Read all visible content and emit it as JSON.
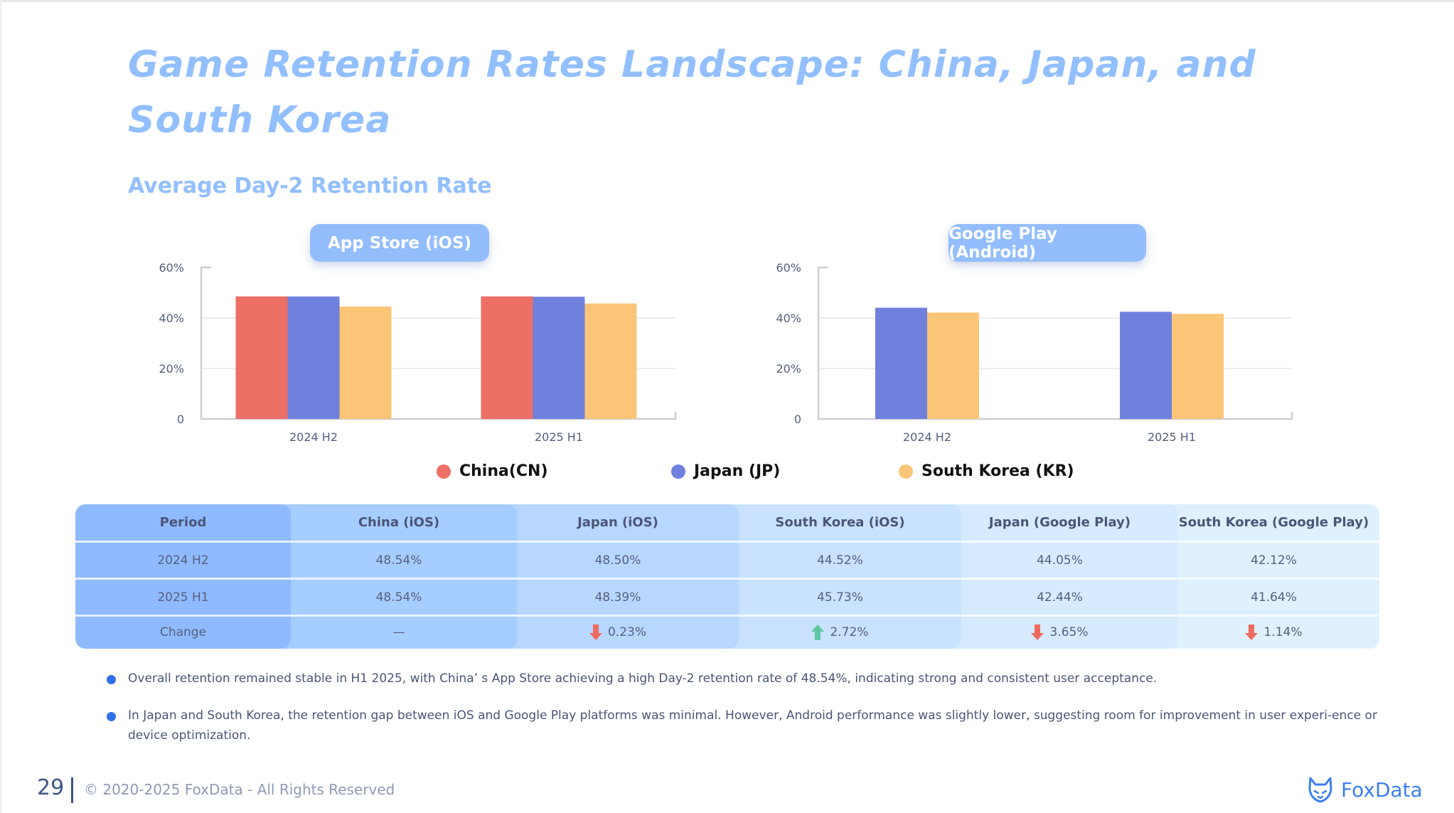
{
  "page": {
    "title": "Game Retention Rates Landscape: China, Japan, and South Korea",
    "section_title": "Average Day-2 Retention Rate"
  },
  "colors": {
    "china": "#ec7066",
    "japan": "#7080dd",
    "korea": "#fac577",
    "title": "#92bfff",
    "pill": "#93bdfd",
    "down": "#ee6b5e",
    "up": "#5cc7a0"
  },
  "legend": [
    {
      "label": "China(CN)",
      "color": "#ec7066"
    },
    {
      "label": "Japan (JP)",
      "color": "#7080dd"
    },
    {
      "label": "South Korea (KR)",
      "color": "#fac577"
    }
  ],
  "chart_data": [
    {
      "type": "bar",
      "title": "App Store (iOS)",
      "categories": [
        "2024 H2",
        "2025 H1"
      ],
      "series": [
        {
          "name": "China (CN)",
          "values": [
            48.54,
            48.54
          ]
        },
        {
          "name": "Japan (JP)",
          "values": [
            48.5,
            48.39
          ]
        },
        {
          "name": "South Korea (KR)",
          "values": [
            44.52,
            45.73
          ]
        }
      ],
      "yticks": [
        "0",
        "20%",
        "40%",
        "60%"
      ],
      "ylim": [
        0,
        60
      ],
      "xlabel": "",
      "ylabel": "",
      "grid": true,
      "legend": "bottom"
    },
    {
      "type": "bar",
      "title": "Google Play (Android)",
      "categories": [
        "2024 H2",
        "2025 H1"
      ],
      "series": [
        {
          "name": "Japan (JP)",
          "values": [
            44.05,
            42.44
          ]
        },
        {
          "name": "South Korea (KR)",
          "values": [
            42.12,
            41.64
          ]
        }
      ],
      "yticks": [
        "0",
        "20%",
        "40%",
        "60%"
      ],
      "ylim": [
        0,
        60
      ],
      "xlabel": "",
      "ylabel": "",
      "grid": true,
      "legend": "bottom"
    }
  ],
  "table": {
    "headers": [
      "Period",
      "China (iOS)",
      "Japan (iOS)",
      "South Korea (iOS)",
      "Japan (Google Play)",
      "South Korea (Google Play)"
    ],
    "rows": [
      [
        "2024 H2",
        "48.54%",
        "48.50%",
        "44.52%",
        "44.05%",
        "42.12%"
      ],
      [
        "2025 H1",
        "48.54%",
        "48.39%",
        "45.73%",
        "42.44%",
        "41.64%"
      ]
    ],
    "change_label": "Change",
    "changes": [
      {
        "text": "—",
        "direction": "none"
      },
      {
        "text": "0.23%",
        "direction": "down"
      },
      {
        "text": "2.72%",
        "direction": "up"
      },
      {
        "text": "3.65%",
        "direction": "down"
      },
      {
        "text": "1.14%",
        "direction": "down"
      }
    ]
  },
  "bullets": [
    "Overall retention remained stable in H1 2025, with China’ s App Store achieving a high Day-2 retention rate of 48.54%, indicating strong and consistent user acceptance.",
    "In Japan and South Korea, the retention gap between iOS and Google Play platforms was minimal. However, Android performance was slightly lower, suggesting room for improvement in user experi-ence or device optimization."
  ],
  "footer": {
    "page_number": "29",
    "copyright": "© 2020-2025 FoxData - All Rights Reserved",
    "brand": "FoxData"
  }
}
